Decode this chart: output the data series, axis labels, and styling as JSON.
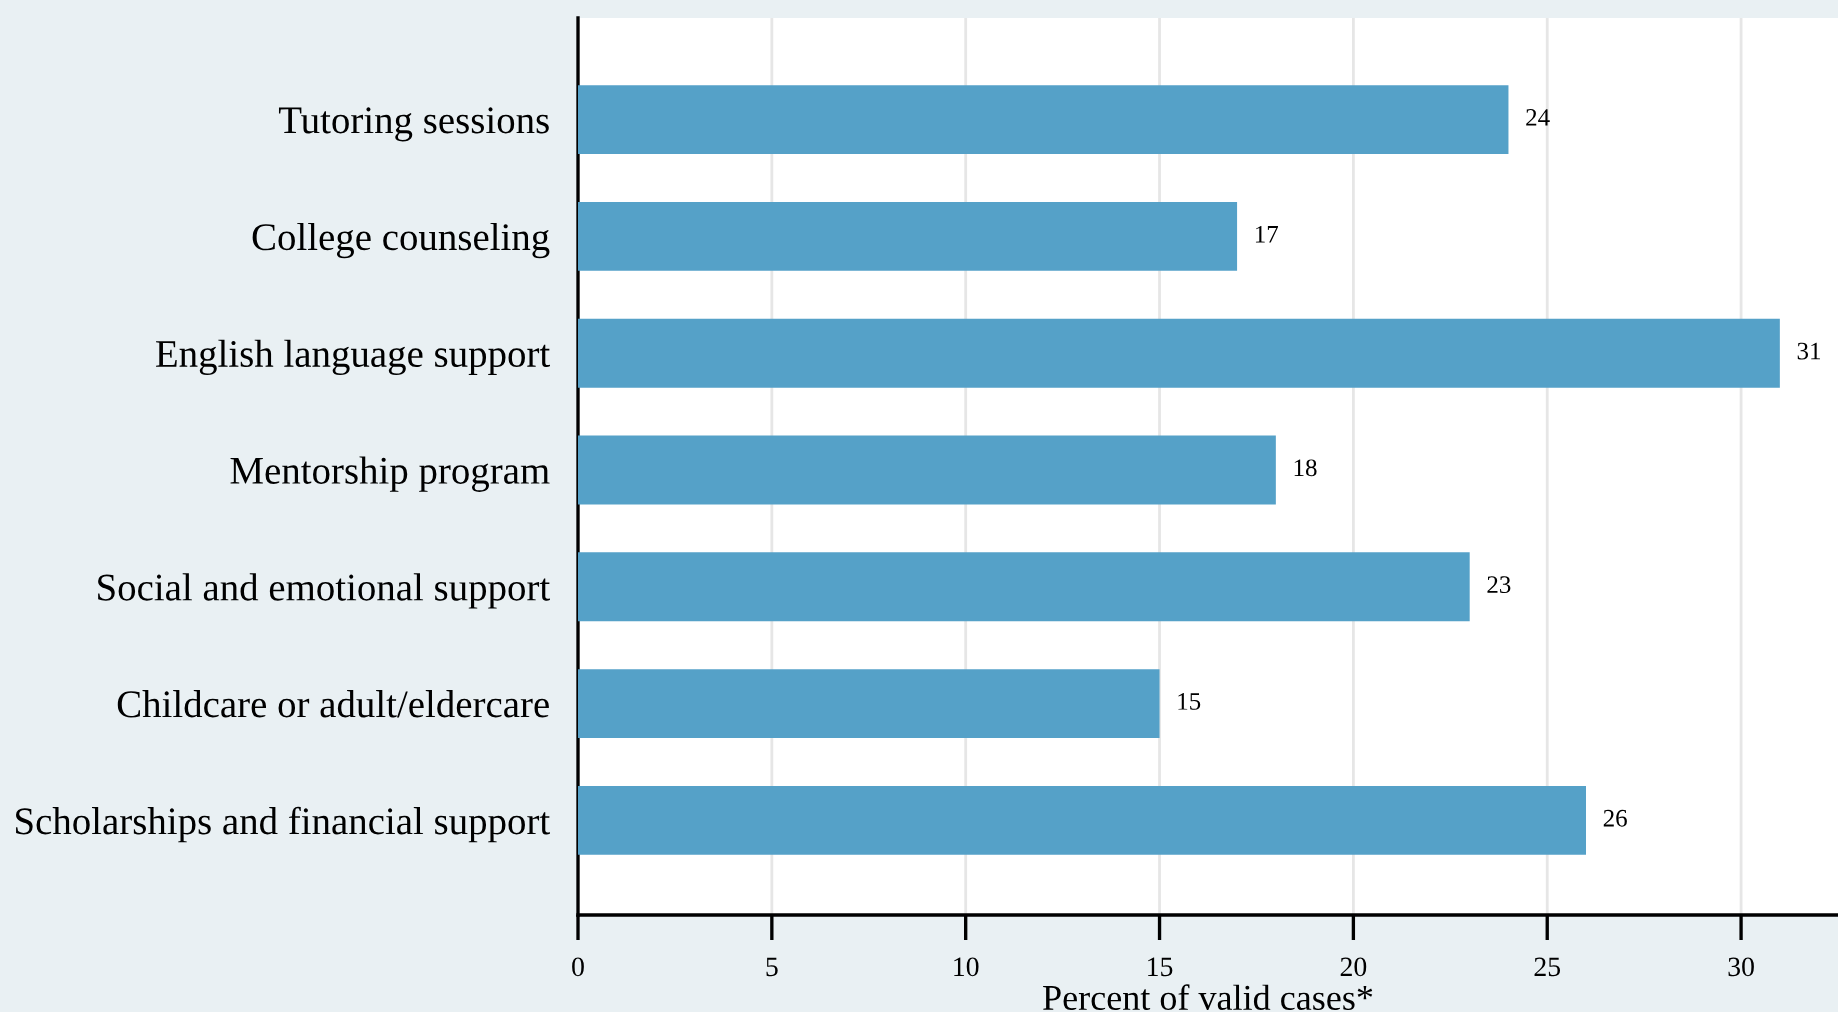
{
  "chart_data": {
    "type": "bar",
    "orientation": "horizontal",
    "categories": [
      "Tutoring sessions",
      "College counseling",
      "English language support",
      "Mentorship program",
      "Social and emotional support",
      "Childcare or adult/eldercare",
      "Scholarships and financial support"
    ],
    "values": [
      24,
      17,
      31,
      18,
      23,
      15,
      26
    ],
    "color": "#55a1c8",
    "xlabel": "Percent of valid cases*",
    "xlim": [
      0,
      32.5
    ],
    "xticks": [
      0,
      5,
      10,
      15,
      20,
      25,
      30
    ],
    "grid": "x",
    "data_labels": true
  }
}
